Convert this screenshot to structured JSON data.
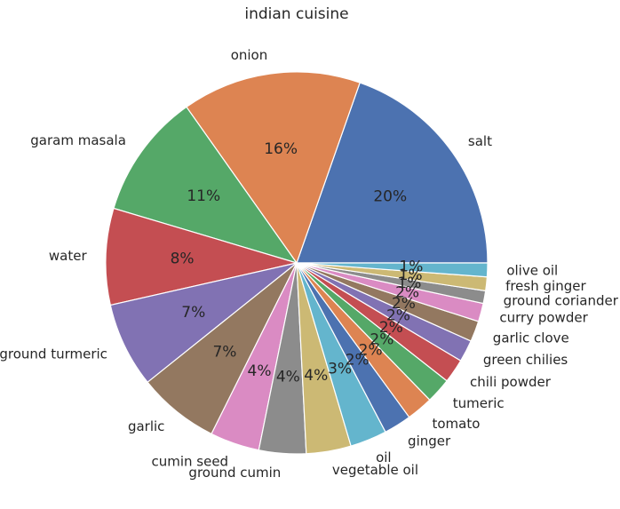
{
  "chart_data": {
    "type": "pie",
    "title": "indian cuisine",
    "start_angle_deg": 0,
    "direction": "counterclockwise",
    "categories": [
      "salt",
      "onion",
      "garam masala",
      "water",
      "ground turmeric",
      "garlic",
      "cumin seed",
      "ground cumin",
      "vegetable oil",
      "oil",
      "ginger",
      "tomato",
      "tumeric",
      "chili powder",
      "green chilies",
      "garlic clove",
      "curry powder",
      "ground coriander",
      "fresh ginger",
      "olive oil"
    ],
    "values": [
      20.2,
      15.6,
      10.9,
      8.4,
      7.4,
      7.1,
      4.3,
      4.1,
      3.9,
      3.2,
      2.4,
      2.3,
      2.2,
      2.1,
      1.9,
      1.8,
      1.6,
      1.1,
      1.2,
      1.2
    ],
    "percent_labels": [
      "20%",
      "16%",
      "11%",
      "8%",
      "7%",
      "7%",
      "4%",
      "4%",
      "4%",
      "3%",
      "2%",
      "2%",
      "2%",
      "2%",
      "2%",
      "2%",
      "2%",
      "1%",
      "1%",
      "1%"
    ],
    "colors": [
      "#4c72b0",
      "#dd8452",
      "#55a868",
      "#c44e52",
      "#8172b3",
      "#937860",
      "#da8bc3",
      "#8c8c8c",
      "#ccb974",
      "#64b5cd",
      "#4c72b0",
      "#dd8452",
      "#55a868",
      "#c44e52",
      "#8172b3",
      "#937860",
      "#da8bc3",
      "#8c8c8c",
      "#ccb974",
      "#64b5cd"
    ]
  }
}
